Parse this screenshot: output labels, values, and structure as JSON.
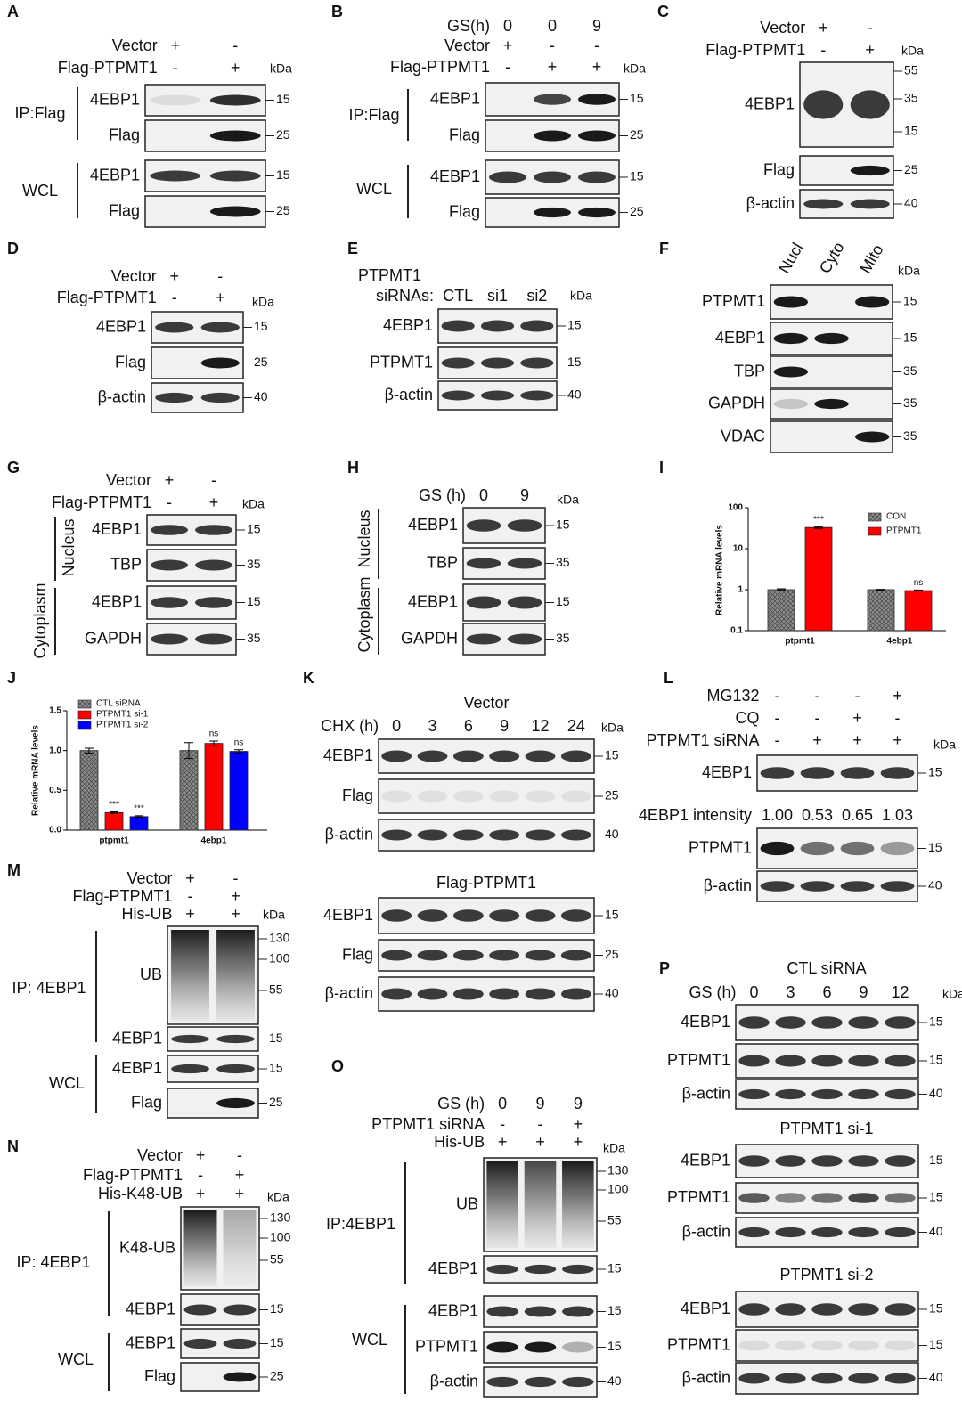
{
  "panels": [
    {
      "letter": "A",
      "kda": "kDa",
      "conditions": [
        {
          "label": "Vector",
          "marks": [
            "+",
            "-"
          ]
        },
        {
          "label": "Flag-PTPMT1",
          "marks": [
            "-",
            "+"
          ]
        }
      ],
      "groups": [
        "IP:Flag",
        "WCL"
      ],
      "blocks": [
        {
          "rows": [
            {
              "label": "4EBP1",
              "markers": [
                15
              ]
            },
            {
              "label": "Flag",
              "markers": [
                25
              ]
            },
            {
              "label": "4EBP1",
              "markers": [
                15
              ]
            },
            {
              "label": "Flag",
              "markers": [
                25
              ]
            }
          ]
        }
      ]
    },
    {
      "letter": "B",
      "kda": "kDa",
      "conditions": [
        {
          "label": "GS(h)",
          "marks": [
            0,
            0,
            9
          ]
        },
        {
          "label": "Vector",
          "marks": [
            "+",
            "-",
            "-"
          ]
        },
        {
          "label": "Flag-PTPMT1",
          "marks": [
            "-",
            "+",
            "+"
          ]
        }
      ],
      "groups": [
        "IP:Flag",
        "WCL"
      ],
      "blocks": [
        {
          "rows": [
            {
              "label": "4EBP1",
              "markers": [
                15
              ]
            },
            {
              "label": "Flag",
              "markers": [
                25
              ]
            },
            {
              "label": "4EBP1",
              "markers": [
                15
              ]
            },
            {
              "label": "Flag",
              "markers": [
                25
              ]
            }
          ]
        }
      ]
    },
    {
      "letter": "C",
      "kda": "kDa",
      "conditions": [
        {
          "label": "Vector",
          "marks": [
            "+",
            "-"
          ]
        },
        {
          "label": "Flag-PTPMT1",
          "marks": [
            "-",
            "+"
          ]
        }
      ],
      "blocks": [
        {
          "rows": [
            {
              "label": "4EBP1",
              "markers": [
                55,
                35,
                15
              ]
            },
            {
              "label": "Flag",
              "markers": [
                25
              ]
            },
            {
              "label": "β-actin",
              "markers": [
                40
              ]
            }
          ]
        }
      ]
    },
    {
      "letter": "D",
      "kda": "kDa",
      "conditions": [
        {
          "label": "Vector",
          "marks": [
            "+",
            "-"
          ]
        },
        {
          "label": "Flag-PTPMT1",
          "marks": [
            "-",
            "+"
          ]
        }
      ],
      "blocks": [
        {
          "rows": [
            {
              "label": "4EBP1",
              "markers": [
                15
              ]
            },
            {
              "label": "Flag",
              "markers": [
                25
              ]
            },
            {
              "label": "β-actin",
              "markers": [
                40
              ]
            }
          ]
        }
      ]
    },
    {
      "letter": "E",
      "kda": "kDa",
      "condition_title": "PTPMT1",
      "conditions": [
        {
          "label": "siRNAs:",
          "marks": [
            "CTL",
            "si1",
            "si2"
          ]
        }
      ],
      "blocks": [
        {
          "rows": [
            {
              "label": "4EBP1",
              "markers": [
                15
              ]
            },
            {
              "label": "PTPMT1",
              "markers": [
                15
              ]
            },
            {
              "label": "β-actin",
              "markers": [
                40
              ]
            }
          ]
        }
      ]
    },
    {
      "letter": "F",
      "kda": "kDa",
      "conditions": [
        {
          "marks": [
            "Nucl",
            "Cyto",
            "Mito"
          ]
        }
      ],
      "blocks": [
        {
          "rows": [
            {
              "label": "PTPMT1",
              "markers": [
                15
              ]
            },
            {
              "label": "4EBP1",
              "markers": [
                15
              ]
            },
            {
              "label": "TBP",
              "markers": [
                35
              ]
            },
            {
              "label": "GAPDH",
              "markers": [
                35
              ]
            },
            {
              "label": "VDAC",
              "markers": [
                35
              ]
            }
          ]
        }
      ]
    },
    {
      "letter": "G",
      "kda": "kDa",
      "conditions": [
        {
          "label": "Vector",
          "marks": [
            "+",
            "-"
          ]
        },
        {
          "label": "Flag-PTPMT1",
          "marks": [
            "-",
            "+"
          ]
        }
      ],
      "groups": [
        "Nucleus",
        "Cytoplasm"
      ],
      "blocks": [
        {
          "rows": [
            {
              "label": "4EBP1",
              "markers": [
                15
              ]
            },
            {
              "label": "TBP",
              "markers": [
                35
              ]
            },
            {
              "label": "4EBP1",
              "markers": [
                15
              ]
            },
            {
              "label": "GAPDH",
              "markers": [
                35
              ]
            }
          ]
        }
      ]
    },
    {
      "letter": "H",
      "kda": "kDa",
      "conditions": [
        {
          "label": "GS (h)",
          "marks": [
            0,
            9
          ]
        }
      ],
      "groups": [
        "Nucleus",
        "Cytoplasm"
      ],
      "blocks": [
        {
          "rows": [
            {
              "label": "4EBP1",
              "markers": [
                15
              ]
            },
            {
              "label": "TBP",
              "markers": [
                35
              ]
            },
            {
              "label": "4EBP1",
              "markers": [
                15
              ]
            },
            {
              "label": "GAPDH",
              "markers": [
                35
              ]
            }
          ]
        }
      ]
    },
    {
      "letter": "I",
      "type": "bar",
      "y_label": "Relative mRNA levels",
      "log": true,
      "ylim": [
        0.1,
        100
      ],
      "yticks": [
        0.1,
        1,
        10,
        100
      ],
      "categories": [
        "ptpmt1",
        "4ebp1"
      ],
      "series": [
        {
          "name": "CON",
          "color": "#8c8c8c",
          "hatch": true,
          "values": [
            1.0,
            1.0
          ],
          "errors": [
            0.05,
            0.02
          ],
          "significance": [
            null,
            null
          ]
        },
        {
          "name": "PTPMT1",
          "color": "#ff0000",
          "values": [
            33,
            0.95
          ],
          "errors": [
            1.5,
            0.03
          ],
          "significance": [
            "***",
            "ns"
          ]
        }
      ]
    },
    {
      "letter": "J",
      "type": "bar",
      "y_label": "Relative mRNA levels",
      "log": false,
      "ylim": [
        0,
        1.5
      ],
      "yticks": [
        {
          "value": 0,
          "label": "0.0"
        },
        0.5,
        {
          "value": 1,
          "label": "1.0"
        },
        1.5
      ],
      "categories": [
        "ptpmt1",
        "4ebp1"
      ],
      "series": [
        {
          "name": "CTL siRNA",
          "color": "#8c8c8c",
          "hatch": true,
          "values": [
            1.0,
            1.0
          ],
          "errors": [
            0.03,
            0.1
          ],
          "significance": [
            null,
            null
          ]
        },
        {
          "name": "PTPMT1 si-1",
          "color": "#ff0000",
          "values": [
            0.22,
            1.09
          ],
          "errors": [
            0.01,
            0.03
          ],
          "significance": [
            "***",
            "ns"
          ]
        },
        {
          "name": "PTPMT1 si-2",
          "color": "#0000ff",
          "values": [
            0.17,
            0.99
          ],
          "errors": [
            0.01,
            0.02
          ],
          "significance": [
            "***",
            "ns"
          ]
        }
      ]
    },
    {
      "letter": "K",
      "kda": "kDa",
      "conditions": [
        {
          "label": "CHX (h)",
          "marks": [
            0,
            3,
            6,
            9,
            12,
            24
          ]
        }
      ],
      "blocks": [
        {
          "title": "Vector",
          "rows": [
            {
              "label": "4EBP1",
              "markers": [
                15
              ]
            },
            {
              "label": "Flag",
              "markers": [
                25
              ]
            },
            {
              "label": "β-actin",
              "markers": [
                40
              ]
            }
          ]
        },
        {
          "title": "Flag-PTPMT1",
          "rows": [
            {
              "label": "4EBP1",
              "markers": [
                15
              ]
            },
            {
              "label": "Flag",
              "markers": [
                25
              ]
            },
            {
              "label": "β-actin",
              "markers": [
                40
              ]
            }
          ]
        }
      ]
    },
    {
      "letter": "L",
      "kda": "kDa",
      "conditions": [
        {
          "label": "MG132",
          "marks": [
            "-",
            "-",
            "-",
            "+"
          ]
        },
        {
          "label": "CQ",
          "marks": [
            "-",
            "-",
            "+",
            "-"
          ]
        },
        {
          "label": "PTPMT1 siRNA",
          "marks": [
            "-",
            "+",
            "+",
            "+"
          ]
        }
      ],
      "blocks": [
        {
          "rows": [
            {
              "label": "4EBP1",
              "markers": [
                15
              ]
            },
            {
              "label": "4EBP1 intensity",
              "texts": [
                "1.00",
                "0.53",
                "0.65",
                "1.03"
              ]
            },
            {
              "label": "PTPMT1",
              "markers": [
                15
              ]
            },
            {
              "label": "β-actin",
              "markers": [
                40
              ]
            }
          ]
        }
      ]
    },
    {
      "letter": "M",
      "kda": "kDa",
      "conditions": [
        {
          "label": "Vector",
          "marks": [
            "+",
            "-"
          ]
        },
        {
          "label": "Flag-PTPMT1",
          "marks": [
            "-",
            "+"
          ]
        },
        {
          "label": "His-UB",
          "marks": [
            "+",
            "+"
          ]
        }
      ],
      "groups": [
        "IP:  4EBP1",
        "WCL"
      ],
      "blocks": [
        {
          "rows": [
            {
              "label": "UB",
              "markers": [
                130,
                100,
                55
              ]
            },
            {
              "label": "4EBP1",
              "markers": [
                15
              ]
            },
            {
              "label": "4EBP1",
              "markers": [
                15
              ]
            },
            {
              "label": "Flag",
              "markers": [
                25
              ]
            }
          ]
        }
      ]
    },
    {
      "letter": "N",
      "kda": "kDa",
      "conditions": [
        {
          "label": "Vector",
          "marks": [
            "+",
            "-"
          ]
        },
        {
          "label": "Flag-PTPMT1",
          "marks": [
            "-",
            "+"
          ]
        },
        {
          "label": "His-K48-UB",
          "marks": [
            "+",
            "+"
          ]
        }
      ],
      "groups": [
        "IP:  4EBP1",
        "WCL"
      ],
      "blocks": [
        {
          "rows": [
            {
              "label": "K48-UB",
              "markers": [
                130,
                100,
                55
              ]
            },
            {
              "label": "4EBP1",
              "markers": [
                15
              ]
            },
            {
              "label": "4EBP1",
              "markers": [
                15
              ]
            },
            {
              "label": "Flag",
              "markers": [
                25
              ]
            }
          ]
        }
      ]
    },
    {
      "letter": "O",
      "kda": "kDa",
      "conditions": [
        {
          "label": "GS (h)",
          "marks": [
            0,
            9,
            9
          ]
        },
        {
          "label": "PTPMT1 siRNA",
          "marks": [
            "-",
            "-",
            "+"
          ]
        },
        {
          "label": "His-UB",
          "marks": [
            "+",
            "+",
            "+"
          ]
        }
      ],
      "groups": [
        "IP:4EBP1",
        "WCL"
      ],
      "blocks": [
        {
          "rows": [
            {
              "label": "UB",
              "markers": [
                130,
                100,
                55
              ]
            },
            {
              "label": "4EBP1",
              "markers": [
                15
              ]
            },
            {
              "label": "4EBP1",
              "markers": [
                15
              ]
            },
            {
              "label": "PTPMT1",
              "markers": [
                15
              ]
            },
            {
              "label": "β-actin",
              "markers": [
                40
              ]
            }
          ]
        }
      ]
    },
    {
      "letter": "P",
      "kda": "kDa",
      "conditions": [
        {
          "label": "GS (h)",
          "marks": [
            0,
            3,
            6,
            9,
            12
          ]
        }
      ],
      "blocks": [
        {
          "title": "CTL siRNA",
          "rows": [
            {
              "label": "4EBP1",
              "markers": [
                15
              ]
            },
            {
              "label": "PTPMT1",
              "markers": [
                15
              ]
            },
            {
              "label": "β-actin",
              "markers": [
                40
              ]
            }
          ]
        },
        {
          "title": "PTPMT1 si-1",
          "rows": [
            {
              "label": "4EBP1",
              "markers": [
                15
              ]
            },
            {
              "label": "PTPMT1",
              "markers": [
                15
              ]
            },
            {
              "label": "β-actin",
              "markers": [
                40
              ]
            }
          ]
        },
        {
          "title": "PTPMT1 si-2",
          "rows": [
            {
              "label": "4EBP1",
              "markers": [
                15
              ]
            },
            {
              "label": "PTPMT1",
              "markers": [
                15
              ]
            },
            {
              "label": "β-actin",
              "markers": [
                40
              ]
            }
          ]
        }
      ]
    }
  ]
}
